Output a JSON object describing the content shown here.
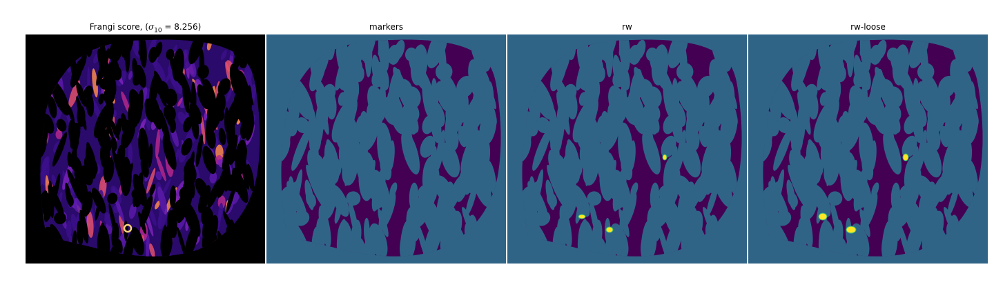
{
  "figure": {
    "panels": [
      {
        "id": "frangi",
        "title_prefix": "Frangi score, (",
        "title_symbol": "σ",
        "title_subscript": "10",
        "title_suffix": " = 8.256)",
        "background": "#000000",
        "colormap": "magma"
      },
      {
        "id": "markers",
        "title": "markers",
        "background": "#306487",
        "fill": "#440154"
      },
      {
        "id": "rw",
        "title": "rw",
        "background": "#306487",
        "fill": "#440154",
        "highlight": "#fde725"
      },
      {
        "id": "rw-loose",
        "title": "rw-loose",
        "background": "#306487",
        "fill": "#440154",
        "highlight": "#fde725"
      }
    ]
  }
}
